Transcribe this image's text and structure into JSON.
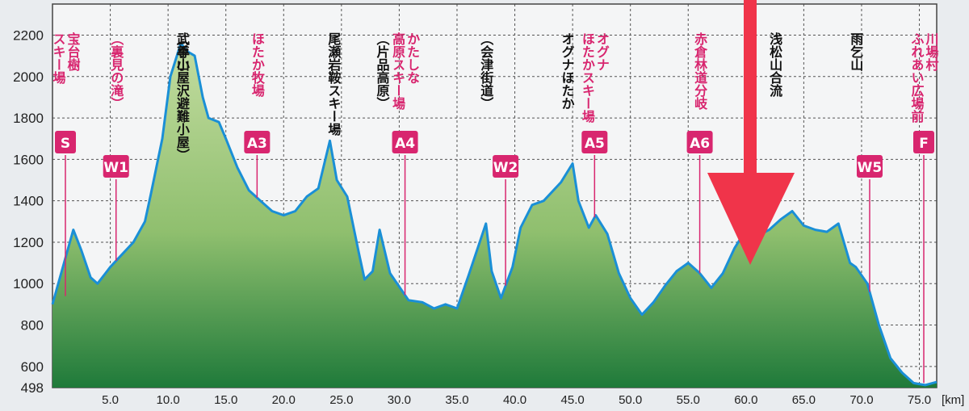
{
  "chart_data": {
    "type": "area",
    "title": "",
    "xlabel": "",
    "ylabel": "",
    "x_unit": "[km]",
    "xlim": [
      0,
      76.5
    ],
    "ylim": [
      498,
      2350
    ],
    "yticks": [
      498,
      600,
      800,
      1000,
      1200,
      1400,
      1600,
      1800,
      2000,
      2200
    ],
    "xticks": [
      "5.0",
      "10.0",
      "15.0",
      "20.0",
      "25.0",
      "30.0",
      "35.0",
      "40.0",
      "45.0",
      "50.0",
      "55.0",
      "60.0",
      "65.0",
      "70.0",
      "75.0"
    ],
    "grid": true,
    "colors": {
      "line": "#1a8fd6",
      "fill_top": "#c3dca0",
      "fill_bottom": "#1f7a3a",
      "pink": "#d8266f",
      "arrow": "#f0344a"
    },
    "series": [
      {
        "x": [
          0,
          1,
          1.8,
          2.5,
          3.3,
          3.9,
          5,
          6,
          7,
          8,
          8.5,
          9.5,
          10.2,
          11.1,
          11.7,
          12.3,
          13,
          13.5,
          14.4,
          15,
          16,
          17,
          18,
          19,
          20,
          21,
          22,
          23,
          24,
          24.6,
          25.5,
          26.5,
          27,
          27.7,
          28.3,
          29.2,
          30.8,
          32,
          33,
          34,
          35,
          36,
          37.5,
          38,
          38.8,
          39.8,
          40.5,
          41.5,
          42.5,
          44,
          45,
          45.5,
          46.4,
          47,
          48,
          49,
          50,
          51,
          52,
          53,
          54,
          55,
          56,
          57,
          58,
          59,
          60,
          61,
          62,
          63,
          64,
          65,
          66,
          67,
          68,
          69,
          69.5,
          70.5,
          71.5,
          72.5,
          73.5,
          74.5,
          75.5,
          76.5
        ],
        "y": [
          900,
          1100,
          1260,
          1160,
          1030,
          1000,
          1080,
          1140,
          1200,
          1300,
          1430,
          1700,
          2000,
          2160,
          2120,
          2100,
          1900,
          1800,
          1780,
          1700,
          1560,
          1450,
          1400,
          1350,
          1330,
          1350,
          1420,
          1460,
          1690,
          1500,
          1420,
          1150,
          1020,
          1060,
          1260,
          1050,
          920,
          910,
          880,
          900,
          880,
          1040,
          1290,
          1060,
          930,
          1080,
          1270,
          1380,
          1400,
          1490,
          1580,
          1400,
          1270,
          1330,
          1240,
          1050,
          930,
          850,
          910,
          990,
          1060,
          1100,
          1050,
          980,
          1050,
          1170,
          1260,
          1230,
          1260,
          1310,
          1350,
          1280,
          1260,
          1250,
          1290,
          1100,
          1080,
          1000,
          800,
          640,
          570,
          520,
          510,
          525
        ]
      }
    ],
    "annotations": [
      {
        "x": 0.2,
        "tag": "S",
        "label": "宝台樹\nスキー場"
      },
      {
        "x": 5.5,
        "tag": "W1",
        "label": "（裏見の滝）"
      },
      {
        "x": 11.2,
        "tag": "",
        "label": "武尊山"
      },
      {
        "x": 11.2,
        "tag": "",
        "label": "（手小屋沢避難小屋）"
      },
      {
        "x": 17.7,
        "tag": "A3",
        "label": "ほたか牧場"
      },
      {
        "x": 24.3,
        "tag": "",
        "label": "尾瀬岩鞍スキー場"
      },
      {
        "x": 28.5,
        "tag": "",
        "label": "（片品高原）"
      },
      {
        "x": 30.5,
        "tag": "A4",
        "label": "かたしな\n高原スキー場"
      },
      {
        "x": 37.5,
        "tag": "",
        "label": "（会津街道）"
      },
      {
        "x": 39.2,
        "tag": "W2",
        "label": ""
      },
      {
        "x": 44.5,
        "tag": "",
        "label": "オグナほたか"
      },
      {
        "x": 46.9,
        "tag": "A5",
        "label": "オグナ\nほたかスキー場"
      },
      {
        "x": 56,
        "tag": "A6",
        "label": "赤倉林道分岐"
      },
      {
        "x": 62.5,
        "tag": "",
        "label": "浅松山合流"
      },
      {
        "x": 69.5,
        "tag": "",
        "label": "雨乞山"
      },
      {
        "x": 70.7,
        "tag": "W5",
        "label": ""
      },
      {
        "x": 76.2,
        "tag": "F",
        "label": "川場村\nふれあい広場前"
      }
    ]
  }
}
